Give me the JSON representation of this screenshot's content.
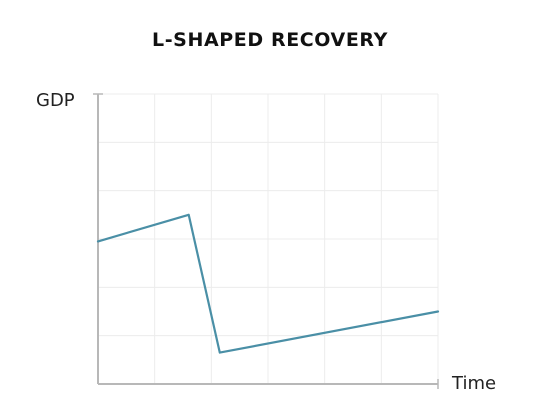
{
  "chart_data": {
    "type": "line",
    "title": "L-SHAPED RECOVERY",
    "xlabel": "Time",
    "ylabel": "GDP",
    "xlim": [
      0,
      6
    ],
    "ylim": [
      0,
      6
    ],
    "grid": true,
    "colors": {
      "line": "#4a8fa6",
      "grid": "#ececec",
      "axis": "#b8b8b8"
    },
    "series": [
      {
        "x": [
          0,
          1.6,
          2.15,
          6
        ],
        "y": [
          2.95,
          3.5,
          0.65,
          1.5
        ]
      }
    ]
  }
}
